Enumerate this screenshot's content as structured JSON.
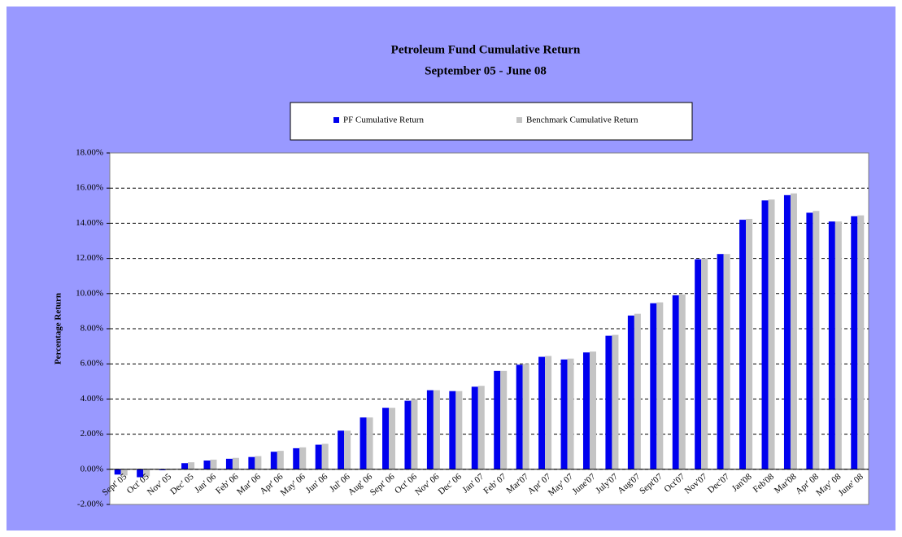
{
  "chart_data": {
    "type": "bar",
    "title": "Petroleum Fund Cumulative Return",
    "subtitle": "September 05 - June 08",
    "y_label": "Percentage Return",
    "categories": [
      "Sept' 05",
      "Oct' 05",
      "Nov' 05",
      "Dec' 05",
      "Jan' 06",
      "Feb' 06",
      "Mar' 06",
      "Apr' 06",
      "May' 06",
      "Jun' 06",
      "Jul' 06",
      "Aug' 06",
      "Sept' 06",
      "Oct' 06",
      "Nov' 06",
      "Dec' 06",
      "Jan' 07",
      "Feb' 07",
      "Mar'07",
      "Apr' 07",
      "May' 07",
      "June'07",
      "July'07",
      "Aug'07",
      "Sept'07",
      "Oct'07",
      "Nov'07",
      "Dec'07",
      "Jan'08",
      "Feb'08",
      "Mar'08",
      "Apr' 08",
      "May' 08",
      "June' 08"
    ],
    "series": [
      {
        "name": "PF Cumulative Return",
        "color": "#0000ee",
        "values": [
          -0.3,
          -0.45,
          -0.05,
          0.35,
          0.5,
          0.6,
          0.7,
          1.0,
          1.2,
          1.4,
          2.2,
          2.95,
          3.5,
          3.9,
          4.5,
          4.45,
          4.7,
          5.6,
          5.95,
          6.4,
          6.25,
          6.65,
          7.6,
          8.75,
          9.45,
          9.9,
          11.95,
          12.25,
          14.2,
          15.3,
          15.6,
          14.6,
          14.1,
          14.4
        ]
      },
      {
        "name": "Benchmark Cumulative Return",
        "color": "#c4c4c4",
        "values": [
          -0.35,
          -0.4,
          -0.05,
          0.4,
          0.55,
          0.65,
          0.75,
          1.05,
          1.25,
          1.45,
          2.2,
          2.95,
          3.5,
          4.0,
          4.5,
          4.45,
          4.75,
          5.6,
          6.0,
          6.45,
          6.3,
          6.7,
          7.65,
          8.85,
          9.5,
          9.95,
          12.0,
          12.25,
          14.25,
          15.35,
          15.7,
          14.7,
          14.1,
          14.45
        ]
      }
    ],
    "ylim": [
      -2,
      18
    ],
    "yticks": [
      {
        "value": -2,
        "label": "-2.00%"
      },
      {
        "value": 0,
        "label": "0.00%"
      },
      {
        "value": 2,
        "label": "2.00%"
      },
      {
        "value": 4,
        "label": "4.00%"
      },
      {
        "value": 6,
        "label": "6.00%"
      },
      {
        "value": 8,
        "label": "8.00%"
      },
      {
        "value": 10,
        "label": "10.00%"
      },
      {
        "value": 12,
        "label": "12.00%"
      },
      {
        "value": 14,
        "label": "14.00%"
      },
      {
        "value": 16,
        "label": "16.00%"
      },
      {
        "value": 18,
        "label": "18.00%"
      }
    ],
    "grid": true,
    "legend": "top"
  }
}
